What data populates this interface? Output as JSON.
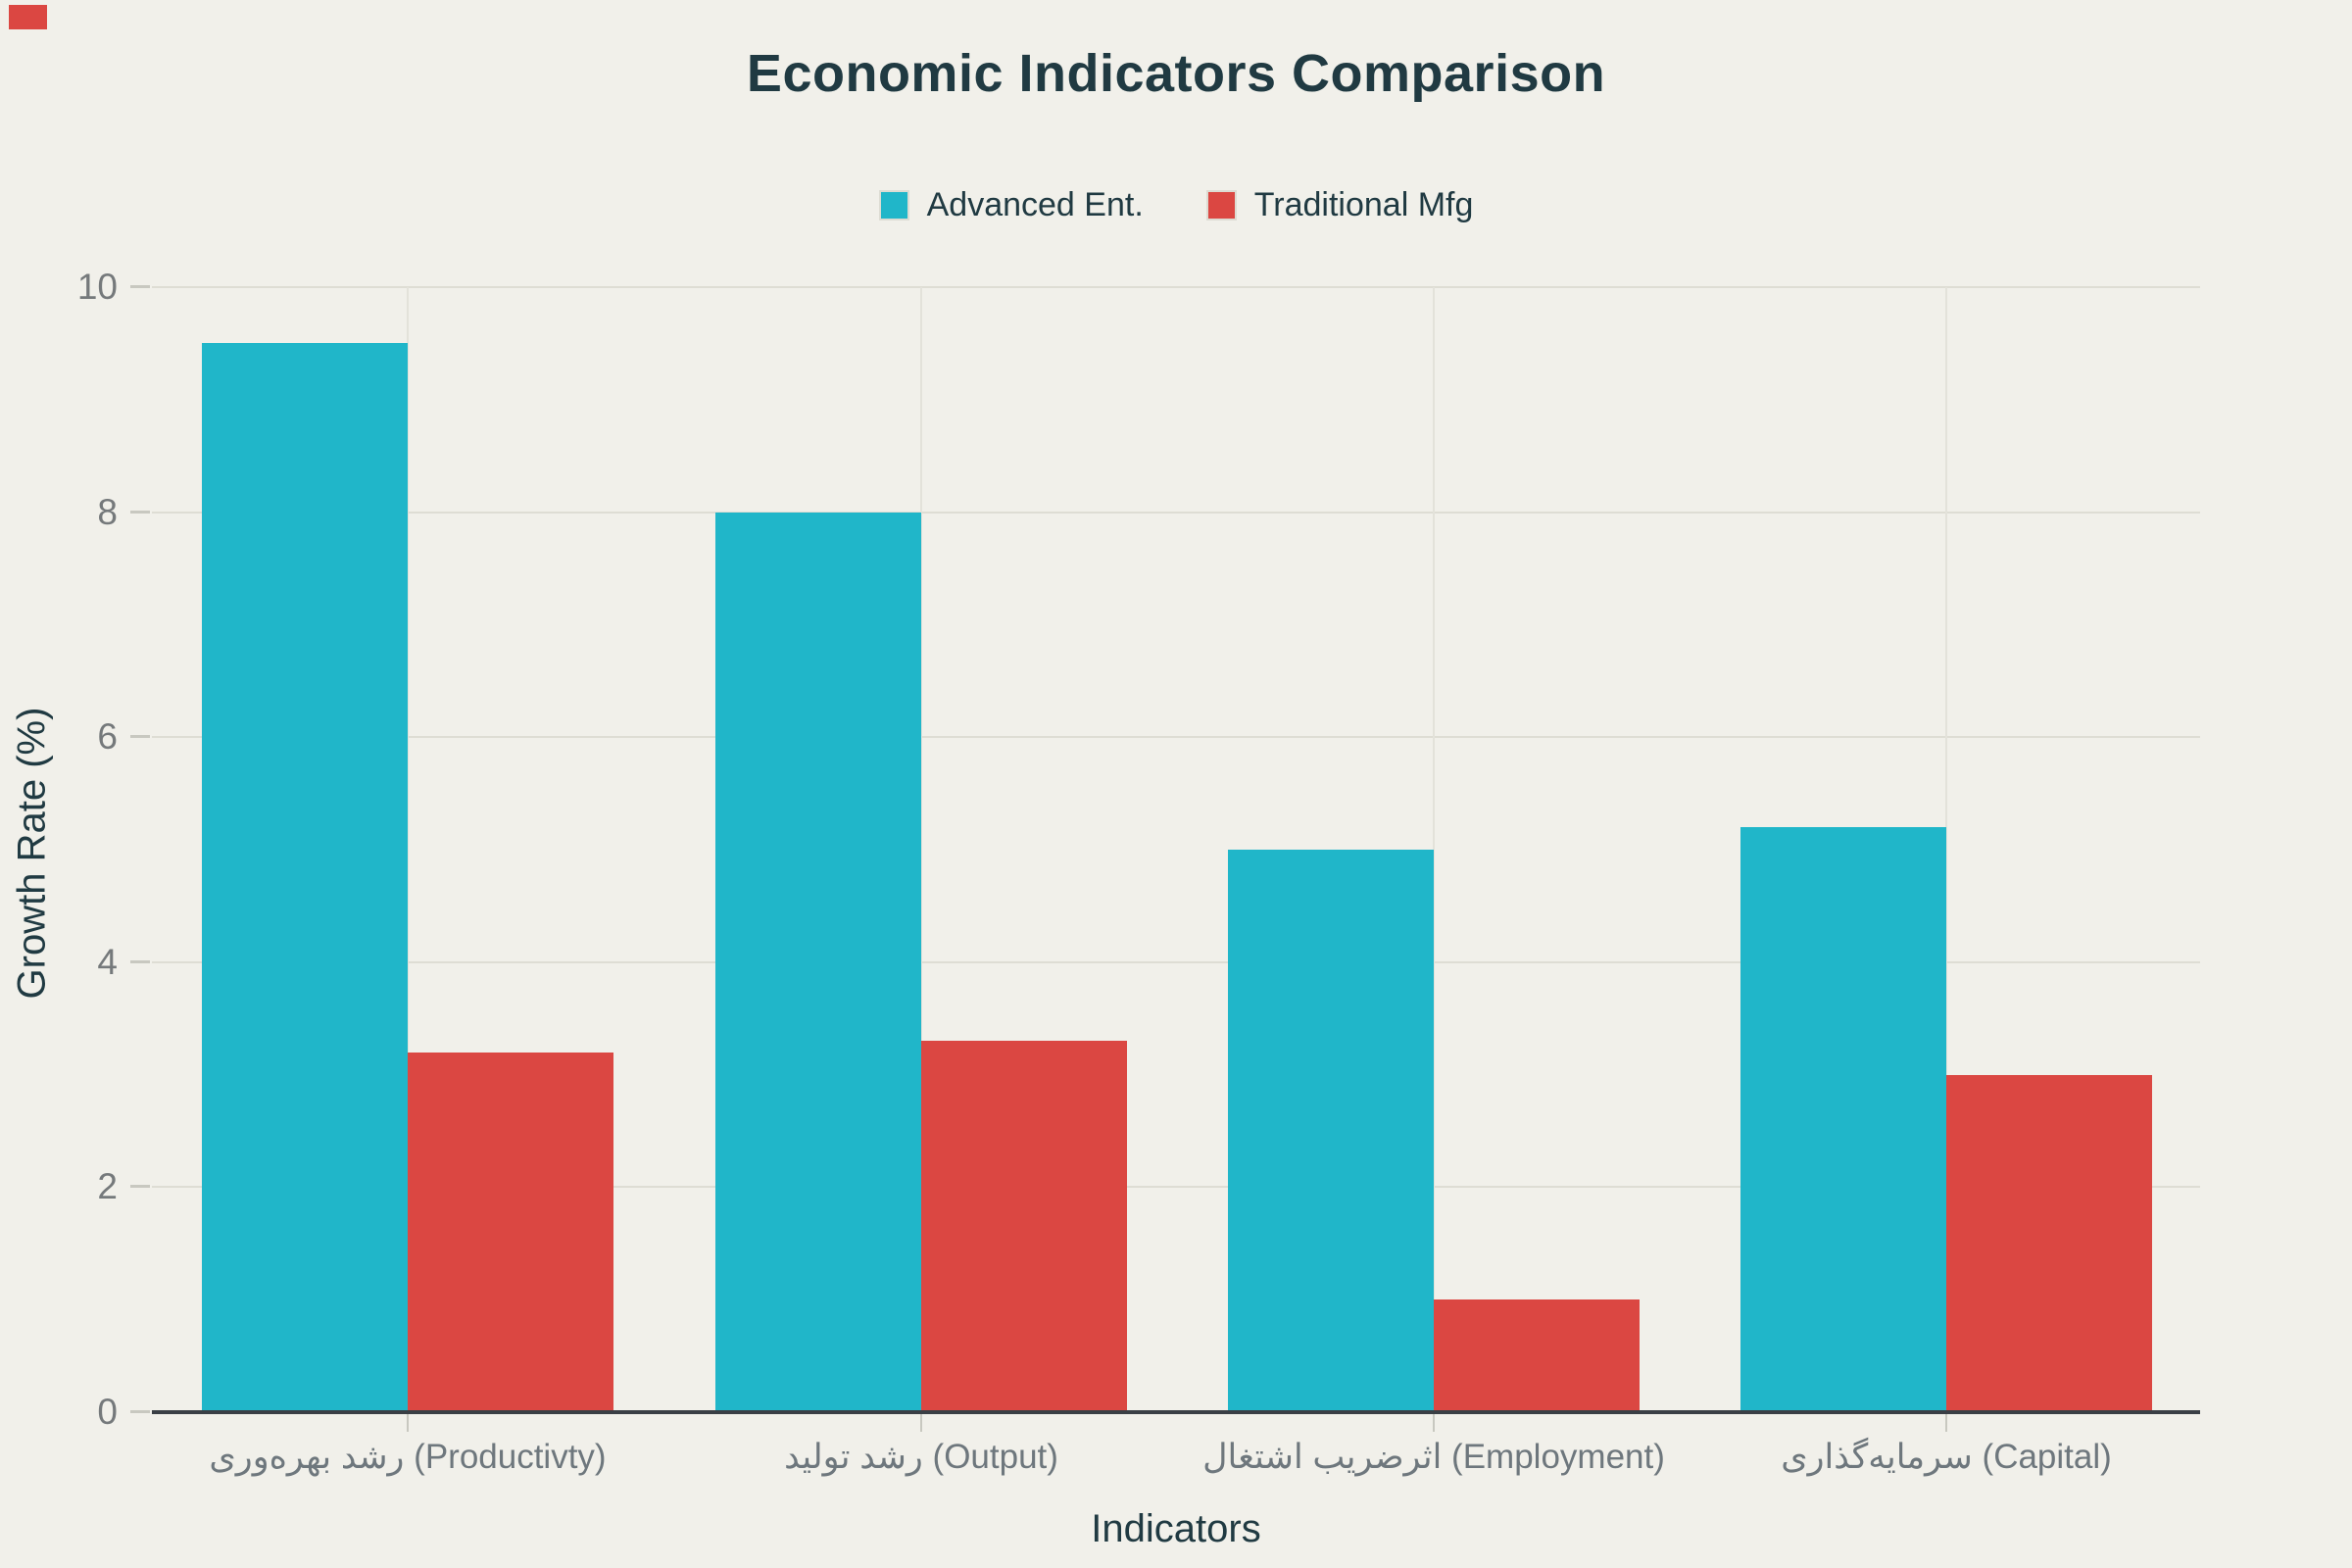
{
  "title": "Economic Indicators Comparison",
  "legend": {
    "items": [
      {
        "label": "Advanced Ent.",
        "color": "#20B6C9"
      },
      {
        "label": "Traditional Mfg",
        "color": "#DB4742"
      }
    ]
  },
  "chart_data": {
    "type": "bar",
    "title": "Economic Indicators Comparison",
    "categories": [
      "رشد بهره‌وری (Productivty)",
      "رشد تولید (Output)",
      "اثرضریب اشتغال (Employment)",
      "سرمایه‌گذاری (Capital)"
    ],
    "series": [
      {
        "name": "Advanced Ent.",
        "color": "#20B6C9",
        "values": [
          9.5,
          8.0,
          5.0,
          5.2
        ]
      },
      {
        "name": "Traditional Mfg",
        "color": "#DB4742",
        "values": [
          3.2,
          3.3,
          1.0,
          3.0
        ]
      }
    ],
    "xlabel": "Indicators",
    "ylabel": "Growth Rate (%)",
    "ylim": [
      0,
      10
    ],
    "yticks": [
      0,
      2,
      4,
      6,
      8,
      10
    ],
    "grid": true,
    "legend_position": "top-center"
  },
  "colors": {
    "background": "#F1F0EA",
    "series_advanced": "#20B6C9",
    "series_traditional": "#DB4742",
    "title_text": "#203A42",
    "tick_text": "#75797B",
    "gridline": "#DEDDD4",
    "axis_line": "#3A3F45",
    "corner_mark": "#DB4742"
  }
}
